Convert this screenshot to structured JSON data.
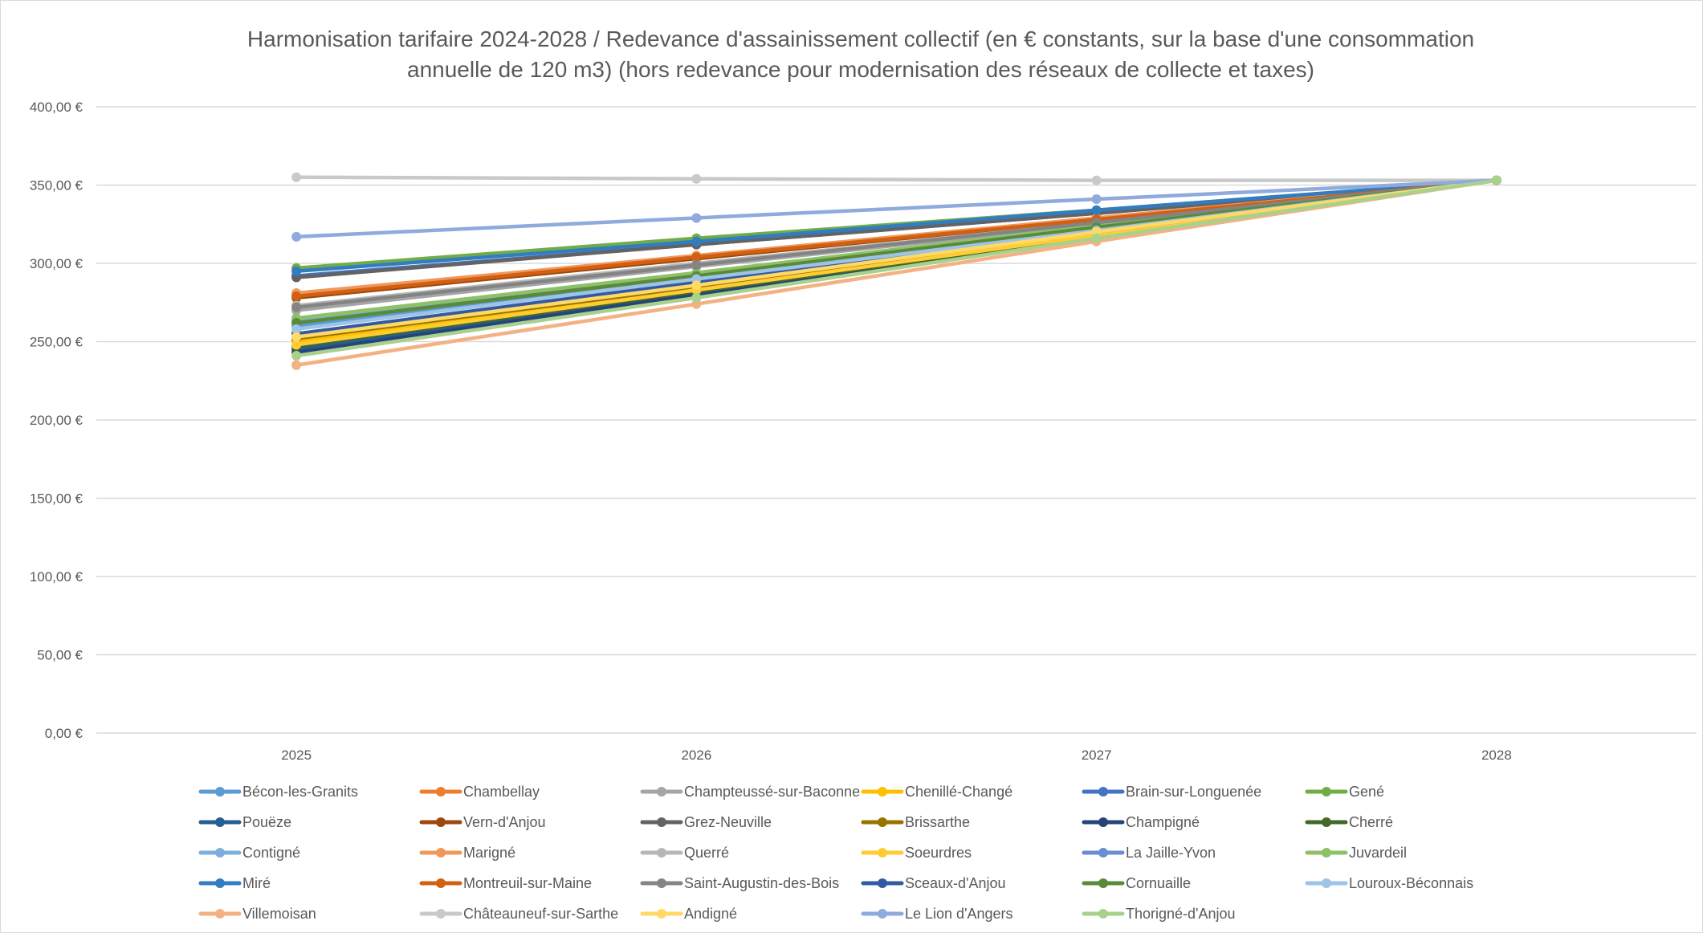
{
  "chart_data": {
    "type": "line",
    "title_lines": [
      "Harmonisation tarifaire 2024-2028 / Redevance d'assainissement collectif (en € constants, sur la base d'une consommation",
      "annuelle de 120 m3) (hors redevance pour modernisation des réseaux de collecte et taxes)"
    ],
    "xlabel": "",
    "ylabel": "",
    "categories": [
      "2025",
      "2026",
      "2027",
      "2028"
    ],
    "y_ticks": [
      "0,00 €",
      "50,00 €",
      "100,00 €",
      "150,00 €",
      "200,00 €",
      "250,00 €",
      "300,00 €",
      "350,00 €",
      "400,00 €"
    ],
    "ylim": [
      0,
      400
    ],
    "grid": "horizontal",
    "legend_position": "bottom",
    "series": [
      {
        "name": "Bécon-les-Granits",
        "color": "#5b9bd5",
        "values": [
          260,
          291,
          322,
          353
        ]
      },
      {
        "name": "Chambellay",
        "color": "#ed7d31",
        "values": [
          280,
          304,
          328,
          353
        ]
      },
      {
        "name": "Champteussé-sur-Baconne",
        "color": "#a5a5a5",
        "values": [
          270,
          298,
          325,
          353
        ]
      },
      {
        "name": "Chenillé-Changé",
        "color": "#ffc000",
        "values": [
          250,
          284,
          318,
          353
        ]
      },
      {
        "name": "Brain-sur-Longuenée",
        "color": "#4472c4",
        "values": [
          292,
          312,
          332,
          353
        ]
      },
      {
        "name": "Gené",
        "color": "#70ad47",
        "values": [
          297,
          316,
          334,
          353
        ]
      },
      {
        "name": "Pouëze",
        "color": "#255e91",
        "values": [
          245,
          281,
          317,
          353
        ]
      },
      {
        "name": "Vern-d'Anjou",
        "color": "#9e480e",
        "values": [
          278,
          303,
          328,
          353
        ]
      },
      {
        "name": "Grez-Neuville",
        "color": "#636363",
        "values": [
          291,
          312,
          332,
          353
        ]
      },
      {
        "name": "Brissarthe",
        "color": "#997300",
        "values": [
          252,
          285,
          319,
          353
        ]
      },
      {
        "name": "Champigné",
        "color": "#264478",
        "values": [
          243,
          280,
          316,
          353
        ]
      },
      {
        "name": "Cherré",
        "color": "#43682b",
        "values": [
          247,
          282,
          317,
          353
        ]
      },
      {
        "name": "Contigné",
        "color": "#7cafdd",
        "values": [
          263,
          293,
          323,
          353
        ]
      },
      {
        "name": "Marigné",
        "color": "#f1975a",
        "values": [
          281,
          305,
          329,
          353
        ]
      },
      {
        "name": "Querré",
        "color": "#b7b7b7",
        "values": [
          273,
          300,
          326,
          353
        ]
      },
      {
        "name": "Soeurdres",
        "color": "#ffcd33",
        "values": [
          248,
          283,
          318,
          353
        ]
      },
      {
        "name": "La Jaille-Yvon",
        "color": "#698ed0",
        "values": [
          255,
          288,
          320,
          353
        ]
      },
      {
        "name": "Juvardeil",
        "color": "#8cc168",
        "values": [
          265,
          294,
          324,
          353
        ]
      },
      {
        "name": "Miré",
        "color": "#327dc2",
        "values": [
          295,
          314,
          334,
          353
        ]
      },
      {
        "name": "Montreuil-sur-Maine",
        "color": "#d26012",
        "values": [
          279,
          304,
          328,
          353
        ]
      },
      {
        "name": "Saint-Augustin-des-Bois",
        "color": "#848484",
        "values": [
          272,
          299,
          326,
          353
        ]
      },
      {
        "name": "Sceaux-d'Anjou",
        "color": "#335aa1",
        "values": [
          255,
          288,
          320,
          353
        ]
      },
      {
        "name": "Cornuaille",
        "color": "#5a8a39",
        "values": [
          262,
          292,
          323,
          353
        ]
      },
      {
        "name": "Louroux-Béconnais",
        "color": "#9dc3e6",
        "values": [
          258,
          290,
          321,
          353
        ]
      },
      {
        "name": "Villemoisan",
        "color": "#f4b183",
        "values": [
          235,
          274,
          314,
          353
        ]
      },
      {
        "name": "Châteauneuf-sur-Sarthe",
        "color": "#c9c9c9",
        "values": [
          355,
          354,
          353,
          353
        ]
      },
      {
        "name": "Andigné",
        "color": "#ffd966",
        "values": [
          253,
          286,
          320,
          353
        ]
      },
      {
        "name": "Le Lion d'Angers",
        "color": "#8faadc",
        "values": [
          317,
          329,
          341,
          353
        ]
      },
      {
        "name": "Thorigné-d'Anjou",
        "color": "#a9d18e",
        "values": [
          241,
          278,
          316,
          353
        ]
      }
    ]
  }
}
